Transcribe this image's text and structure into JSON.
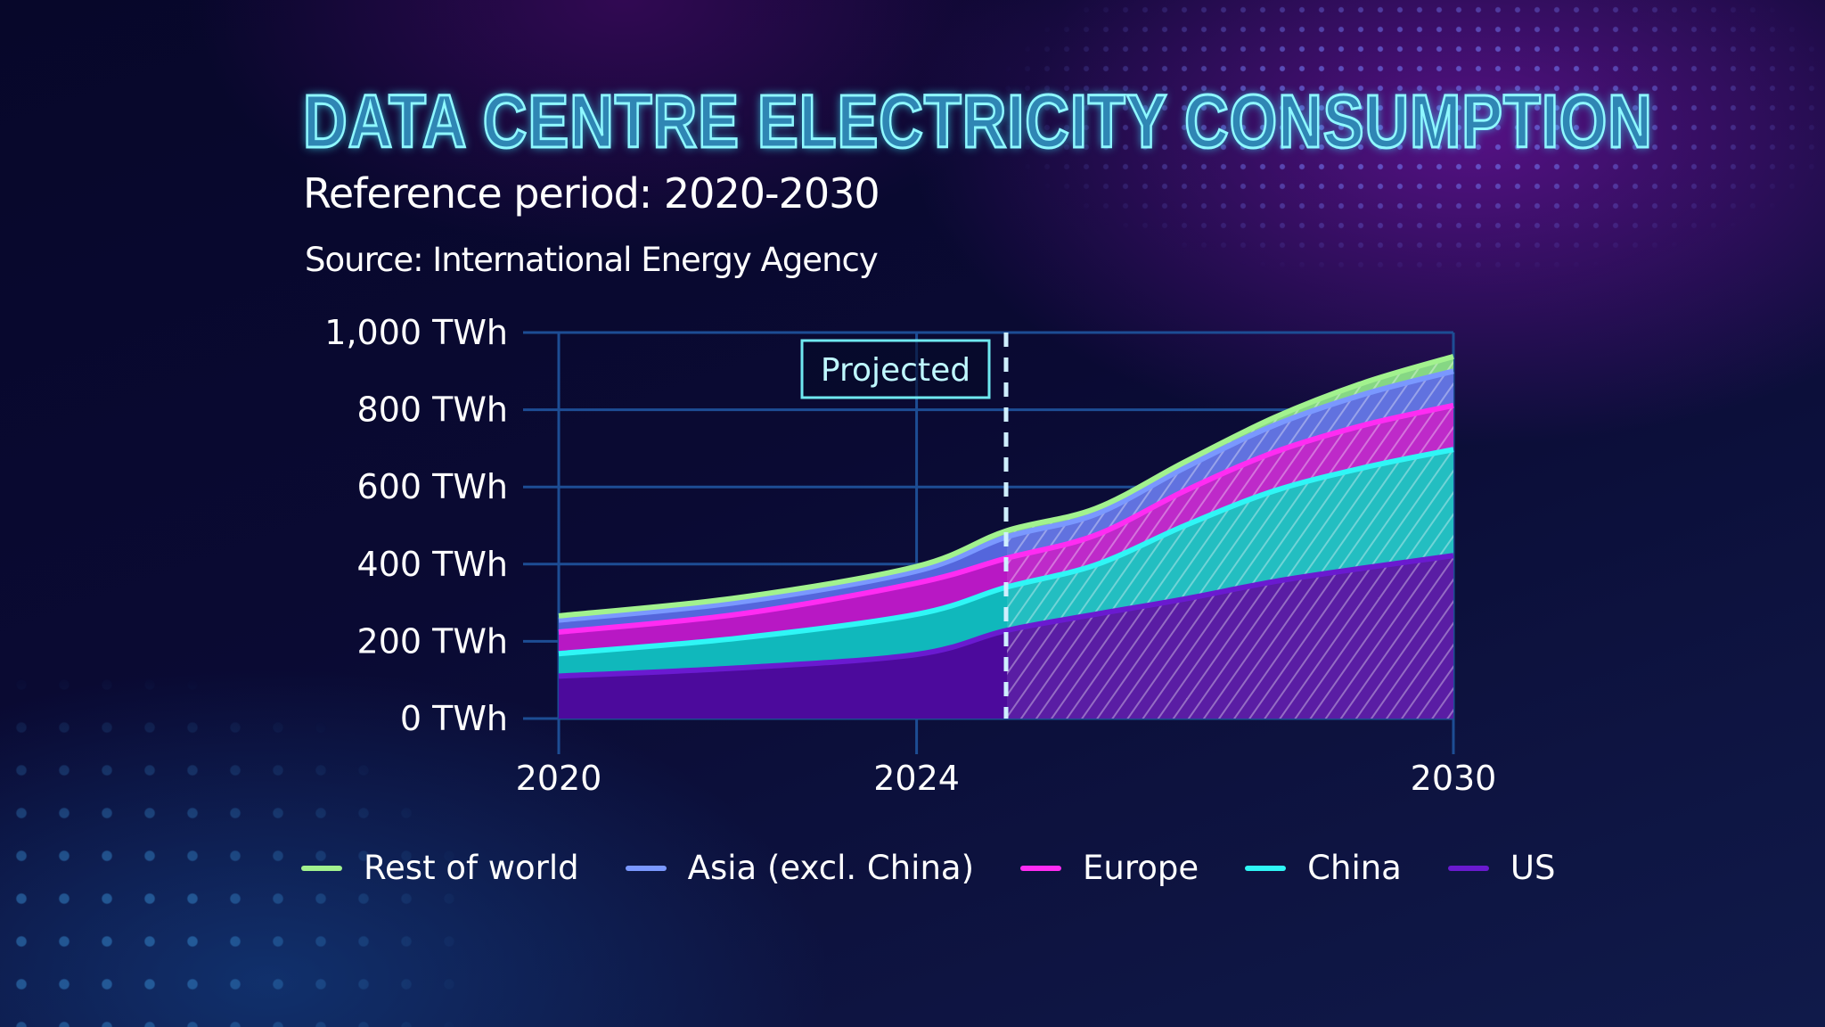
{
  "title": "DATA CENTRE ELECTRICITY CONSUMPTION",
  "subtitle": "Reference period: 2020-2030",
  "source": "Source: International Energy Agency",
  "chart_data": {
    "type": "area",
    "stacked": true,
    "x": [
      2020,
      2022,
      2024,
      2025,
      2026,
      2027,
      2028,
      2029,
      2030
    ],
    "xlim": [
      2020,
      2030
    ],
    "xticks": [
      "2020",
      "2024",
      "2030"
    ],
    "ylim": [
      0,
      1000
    ],
    "yticks": [
      "0 TWh",
      "200 TWh",
      "400 TWh",
      "600 TWh",
      "800 TWh",
      "1,000 TWh"
    ],
    "grid": true,
    "projection_start": 2025,
    "annotation": "Projected",
    "legend_position": "bottom",
    "series": [
      {
        "name": "US",
        "color": "#4c0a9c",
        "line": "#6a1ad0",
        "values": [
          110,
          131,
          166,
          228,
          270,
          310,
          355,
          390,
          422
        ]
      },
      {
        "name": "China",
        "color": "#10b8bc",
        "line": "#2ff6f6",
        "values": [
          58,
          77,
          104,
          112,
          128,
          190,
          235,
          260,
          275
        ]
      },
      {
        "name": "Europe",
        "color": "#b818c4",
        "line": "#ff2cf2",
        "values": [
          56,
          62,
          81,
          75,
          77,
          90,
          100,
          110,
          114
        ]
      },
      {
        "name": "Asia (excl. China)",
        "color": "#5466dc",
        "line": "#7a98ff",
        "values": [
          31,
          31,
          31,
          55,
          54,
          60,
          70,
          80,
          89
        ]
      },
      {
        "name": "Rest of world",
        "color": "#7cd47a",
        "line": "#a2f28e",
        "values": [
          11,
          12,
          12,
          16,
          15,
          15,
          20,
          30,
          38
        ]
      }
    ]
  }
}
